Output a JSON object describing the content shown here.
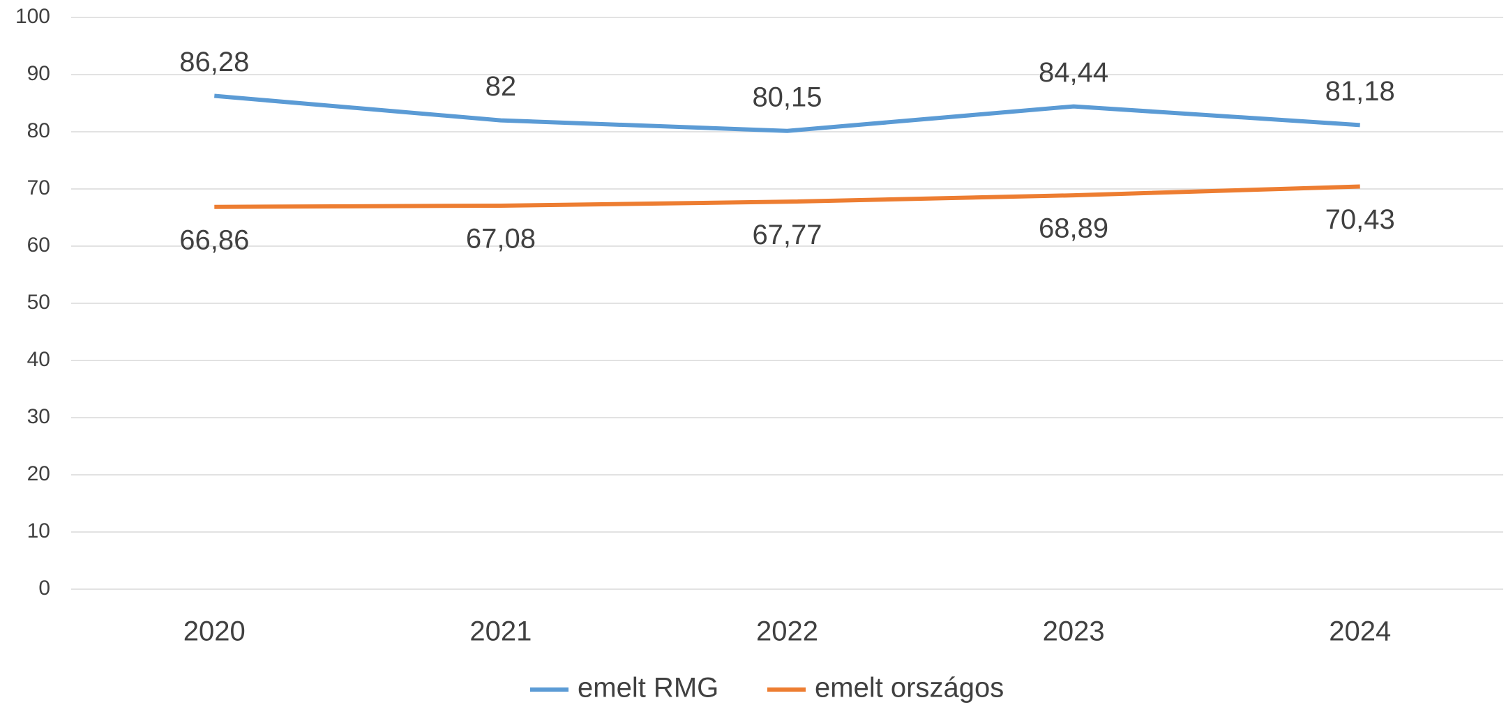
{
  "chart_data": {
    "type": "line",
    "categories": [
      "2020",
      "2021",
      "2022",
      "2023",
      "2024"
    ],
    "series": [
      {
        "name": "emelt RMG",
        "color": "#5b9bd5",
        "values": [
          86.28,
          82,
          80.15,
          84.44,
          81.18
        ],
        "value_labels": [
          "86,28",
          "82",
          "80,15",
          "84,44",
          "81,18"
        ]
      },
      {
        "name": "emelt országos",
        "color": "#ed7d31",
        "values": [
          66.86,
          67.08,
          67.77,
          68.89,
          70.43
        ],
        "value_labels": [
          "66,86",
          "67,08",
          "67,77",
          "68,89",
          "70,43"
        ]
      }
    ],
    "ylim": [
      0,
      100
    ],
    "yticks": [
      0,
      10,
      20,
      30,
      40,
      50,
      60,
      70,
      80,
      90,
      100
    ],
    "grid": true,
    "legend": "bottom"
  }
}
